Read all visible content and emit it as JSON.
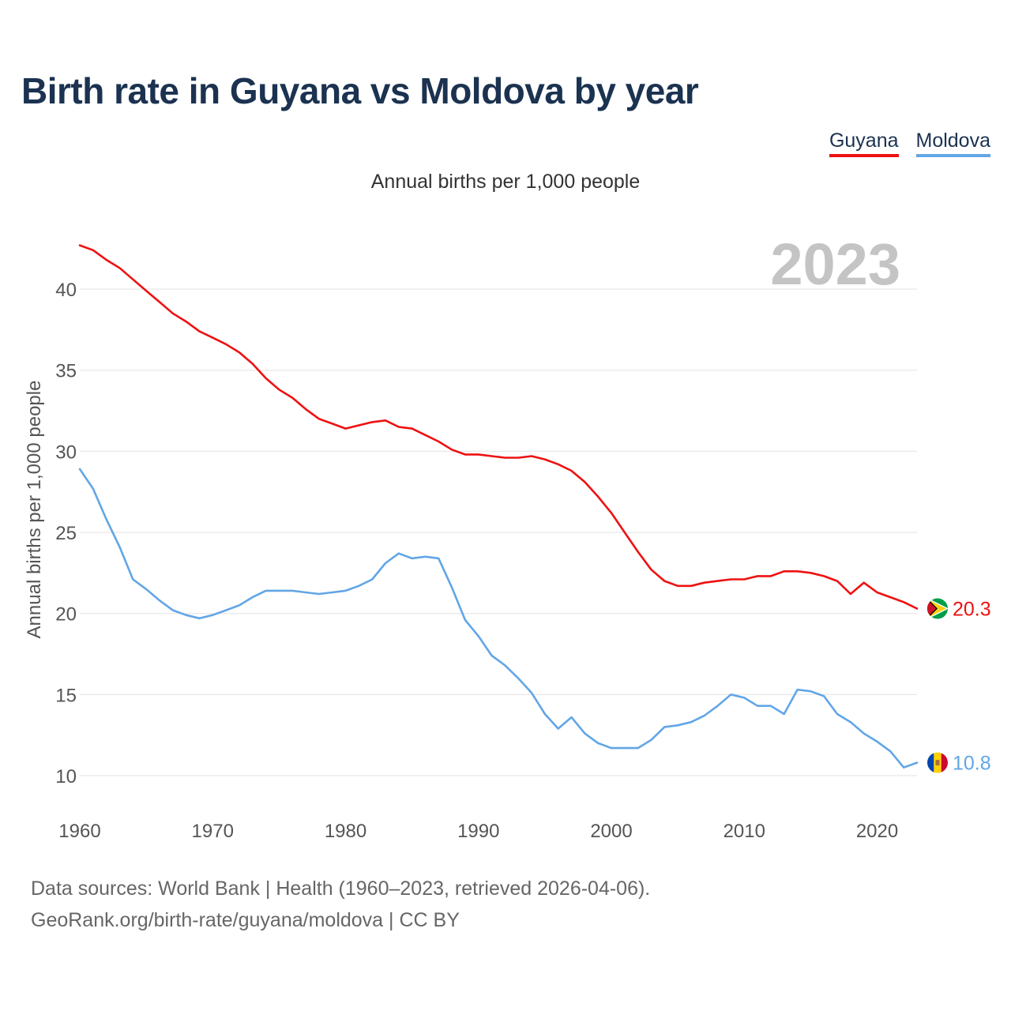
{
  "title": "Birth rate in Guyana vs Moldova by year",
  "subtitle": "Annual births per 1,000 people",
  "legend": [
    {
      "name": "Guyana",
      "color": "#ee1111"
    },
    {
      "name": "Moldova",
      "color": "#62a6e6"
    }
  ],
  "year_label": "2023",
  "source_line1": "Data sources: World Bank | Health (1960–2023, retrieved 2026-04-06).",
  "source_line2": "GeoRank.org/birth-rate/guyana/moldova | CC BY",
  "chart_data": {
    "type": "line",
    "ylabel": "Annual births per 1,000 people",
    "xlabel": "",
    "xlim": [
      1960,
      2023
    ],
    "ylim": [
      10,
      42
    ],
    "x_ticks": [
      1960,
      1970,
      1980,
      1990,
      2000,
      2010,
      2020
    ],
    "y_ticks": [
      10,
      15,
      20,
      25,
      30,
      35,
      40
    ],
    "grid": true,
    "x": [
      1960,
      1961,
      1962,
      1963,
      1964,
      1965,
      1966,
      1967,
      1968,
      1969,
      1970,
      1971,
      1972,
      1973,
      1974,
      1975,
      1976,
      1977,
      1978,
      1979,
      1980,
      1981,
      1982,
      1983,
      1984,
      1985,
      1986,
      1987,
      1988,
      1989,
      1990,
      1991,
      1992,
      1993,
      1994,
      1995,
      1996,
      1997,
      1998,
      1999,
      2000,
      2001,
      2002,
      2003,
      2004,
      2005,
      2006,
      2007,
      2008,
      2009,
      2010,
      2011,
      2012,
      2013,
      2014,
      2015,
      2016,
      2017,
      2018,
      2019,
      2020,
      2021,
      2022,
      2023
    ],
    "series": [
      {
        "name": "Guyana",
        "color": "#ee1111",
        "end_label": "20.3",
        "values": [
          42.7,
          42.4,
          41.8,
          41.3,
          40.6,
          39.9,
          39.2,
          38.5,
          38.0,
          37.4,
          37.0,
          36.6,
          36.1,
          35.4,
          34.5,
          33.8,
          33.3,
          32.6,
          32.0,
          31.7,
          31.4,
          31.6,
          31.8,
          31.9,
          31.5,
          31.4,
          31.0,
          30.6,
          30.1,
          29.8,
          29.8,
          29.7,
          29.6,
          29.6,
          29.7,
          29.5,
          29.2,
          28.8,
          28.1,
          27.2,
          26.2,
          25.0,
          23.8,
          22.7,
          22.0,
          21.7,
          21.7,
          21.9,
          22.0,
          22.1,
          22.1,
          22.3,
          22.3,
          22.6,
          22.6,
          22.5,
          22.3,
          22.0,
          21.2,
          21.9,
          21.3,
          21.0,
          20.7,
          20.3
        ]
      },
      {
        "name": "Moldova",
        "color": "#62a6e6",
        "end_label": "10.8",
        "values": [
          28.9,
          27.7,
          25.8,
          24.1,
          22.1,
          21.5,
          20.8,
          20.2,
          19.9,
          19.7,
          19.9,
          20.2,
          20.5,
          21.0,
          21.4,
          21.4,
          21.4,
          21.3,
          21.2,
          21.3,
          21.4,
          21.7,
          22.1,
          23.1,
          23.7,
          23.4,
          23.5,
          23.4,
          21.6,
          19.6,
          18.6,
          17.4,
          16.8,
          16.0,
          15.1,
          13.8,
          12.9,
          13.6,
          12.6,
          12.0,
          11.7,
          11.7,
          11.7,
          12.2,
          13.0,
          13.1,
          13.3,
          13.7,
          14.3,
          15.0,
          14.8,
          14.3,
          14.3,
          13.8,
          15.3,
          15.2,
          14.9,
          13.8,
          13.3,
          12.6,
          12.1,
          11.5,
          10.5,
          10.8
        ]
      }
    ]
  }
}
